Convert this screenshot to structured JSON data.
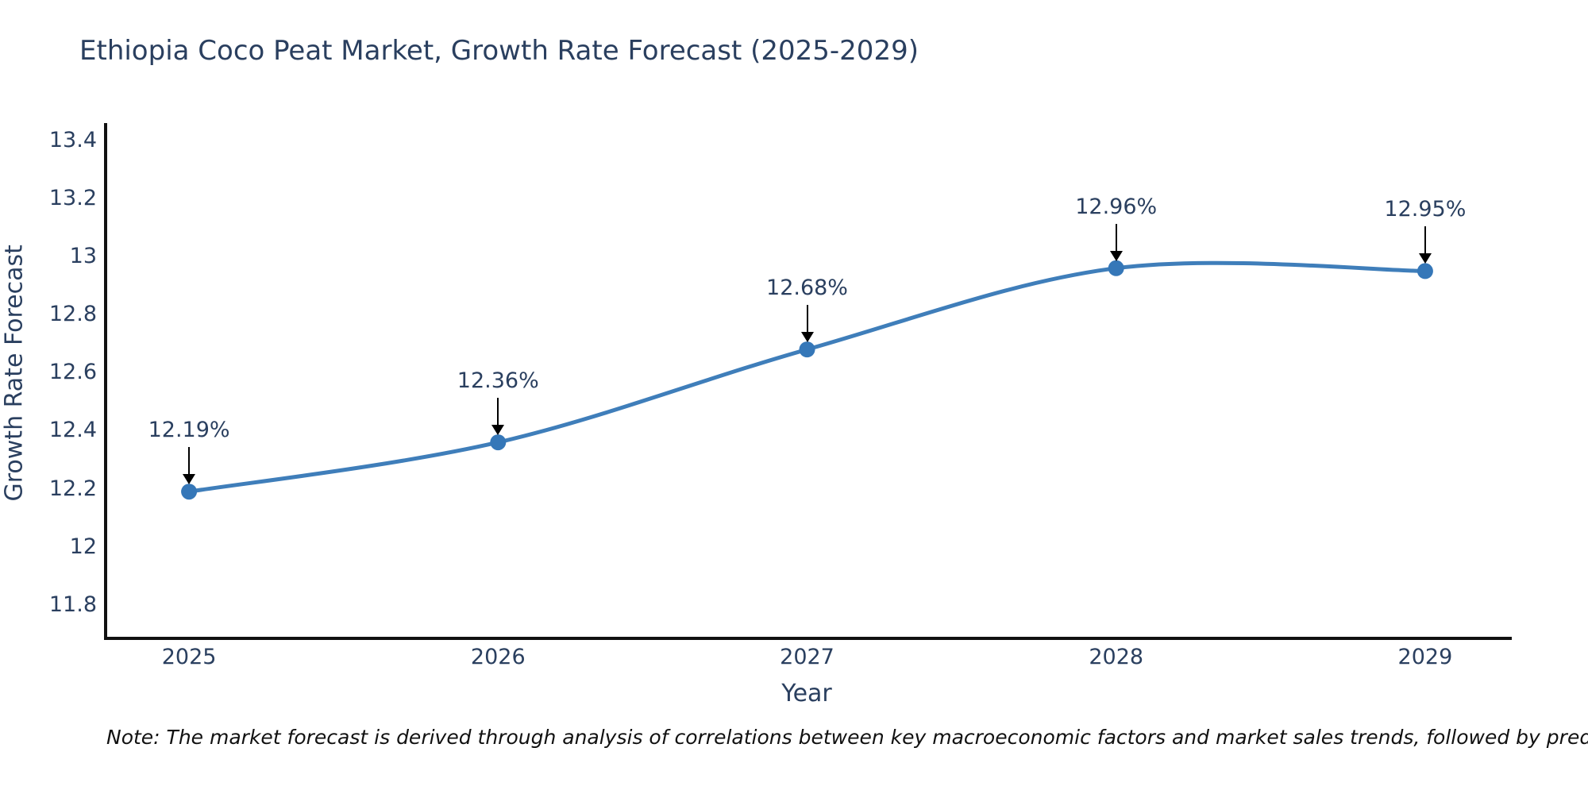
{
  "title": "Ethiopia Coco Peat Market, Growth Rate Forecast (2025-2029)",
  "note": "Note: The market forecast is derived through analysis of correlations between key macroeconomic factors and market sales trends, followed by predictive modeling to project future sales.",
  "chart_data": {
    "type": "line",
    "title": "Ethiopia Coco Peat Market, Growth Rate Forecast (2025-2029)",
    "xlabel": "Year",
    "ylabel": "Growth Rate Forecast",
    "x": [
      2025,
      2026,
      2027,
      2028,
      2029
    ],
    "series": [
      {
        "name": "Growth Rate Forecast",
        "values": [
          12.19,
          12.36,
          12.68,
          12.96,
          12.95
        ]
      }
    ],
    "point_labels": [
      "12.19%",
      "12.36%",
      "12.68%",
      "12.96%",
      "12.95%"
    ],
    "x_ticks": [
      2025,
      2026,
      2027,
      2028,
      2029
    ],
    "y_ticks": [
      13.4,
      13.2,
      13,
      12.8,
      12.6,
      12.4,
      12.2,
      12,
      11.8
    ],
    "xlim": [
      2024.73,
      2029.27
    ],
    "ylim": [
      11.69,
      13.46
    ],
    "grid": false,
    "legend": "none",
    "line_shape": "spline",
    "colors": {
      "line": "#3f7eba",
      "marker": "#3577b8",
      "arrow": "#000000",
      "axis": "#111111",
      "text": "#2a3f5f",
      "note_text": "#111111",
      "background": "#ffffff"
    }
  }
}
